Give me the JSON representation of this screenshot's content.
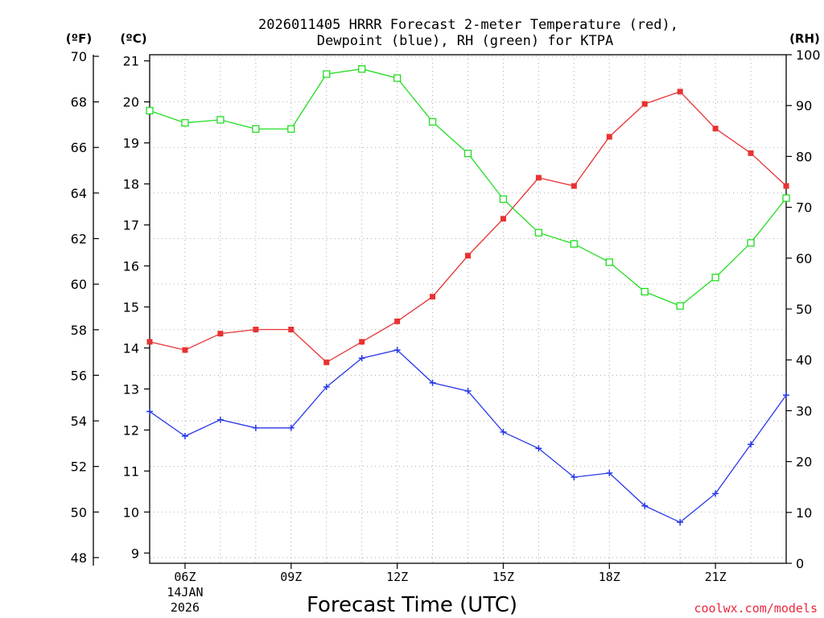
{
  "chart_data": {
    "type": "line",
    "title_line1": "2026011405 HRRR Forecast 2-meter Temperature (red),",
    "title_line2": "Dewpoint (blue), RH (green) for KTPA",
    "left_outer_axis_label": "(ºF)",
    "left_inner_axis_label": "(ºC)",
    "right_axis_label": "(RH)",
    "xlabel": "Forecast Time (UTC)",
    "credit": "coolwx.com/models",
    "x_hours": [
      5,
      6,
      7,
      8,
      9,
      10,
      11,
      12,
      13,
      14,
      15,
      16,
      17,
      18,
      19,
      20,
      21,
      22,
      23
    ],
    "x_range": [
      5,
      23
    ],
    "x_ticks": [
      {
        "hour": 6,
        "label": "06Z",
        "date_line1": "14JAN",
        "date_line2": "2026"
      },
      {
        "hour": 9,
        "label": "09Z"
      },
      {
        "hour": 12,
        "label": "12Z"
      },
      {
        "hour": 15,
        "label": "15Z"
      },
      {
        "hour": 18,
        "label": "18Z"
      },
      {
        "hour": 21,
        "label": "21Z"
      }
    ],
    "celsius_range": [
      8.75,
      21.15
    ],
    "celsius_ticks": [
      "9",
      "10",
      "11",
      "12",
      "13",
      "14",
      "15",
      "16",
      "17",
      "18",
      "19",
      "20",
      "21"
    ],
    "fahrenheit_ticks": [
      "48",
      "50",
      "52",
      "54",
      "56",
      "58",
      "60",
      "62",
      "64",
      "66",
      "68",
      "70"
    ],
    "rh_range": [
      0,
      100
    ],
    "rh_ticks": [
      "0",
      "10",
      "20",
      "30",
      "40",
      "50",
      "60",
      "70",
      "80",
      "90",
      "100"
    ],
    "grid": true,
    "series": [
      {
        "name": "Temperature",
        "unit": "C",
        "color": "#e83232",
        "marker": "filled-square",
        "values": [
          14.15,
          13.95,
          14.35,
          14.45,
          14.45,
          13.65,
          14.15,
          14.65,
          15.25,
          16.25,
          17.15,
          18.15,
          17.95,
          19.15,
          19.95,
          20.25,
          19.35,
          18.75,
          17.95
        ]
      },
      {
        "name": "Dewpoint",
        "unit": "C",
        "color": "#2838e8",
        "marker": "plus",
        "values": [
          12.45,
          11.85,
          12.25,
          12.05,
          12.05,
          13.05,
          13.75,
          13.95,
          13.15,
          12.95,
          11.95,
          11.55,
          10.85,
          10.95,
          10.15,
          9.75,
          10.45,
          11.65,
          12.85
        ]
      },
      {
        "name": "RH",
        "unit": "%",
        "color": "#22dd22",
        "marker": "open-square",
        "values": [
          89.0,
          86.6,
          87.2,
          85.4,
          85.4,
          96.2,
          97.2,
          95.4,
          86.8,
          80.6,
          71.6,
          65.0,
          62.8,
          59.2,
          53.4,
          50.6,
          56.2,
          63.0,
          71.8
        ]
      }
    ]
  }
}
